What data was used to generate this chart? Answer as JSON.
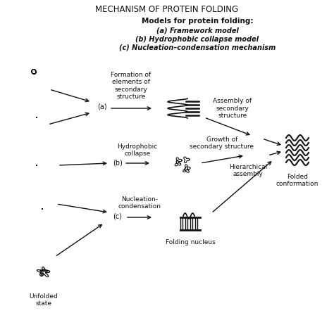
{
  "title": "MECHANISM OF PROTEIN FOLDING",
  "subtitle": "Models for protein folding:",
  "model_a": "(a) Framework model",
  "model_b": "(b) Hydrophobic collapse model",
  "model_c": "(c) Nucleation–condensation mechanism",
  "label_a": "(a)",
  "label_b": "(b)",
  "label_c": "(c)",
  "text_formation": "Formation of\nelements of\nsecondary\nstructure",
  "text_assembly": "Assembly of\nsecondary\nstructure",
  "text_hydrophobic": "Hydrophobic\ncollapse",
  "text_growth": "Growth of\nsecondary structure",
  "text_nucleation": "Nucleation-\ncondensation",
  "text_hierarchical": "Hierarchical\nassembly",
  "text_folding_nucleus": "Folding nucleus",
  "text_folded": "Folded\nconformation",
  "text_unfolded": "Unfolded\nstate",
  "line_color": "#111111",
  "text_color": "#111111"
}
